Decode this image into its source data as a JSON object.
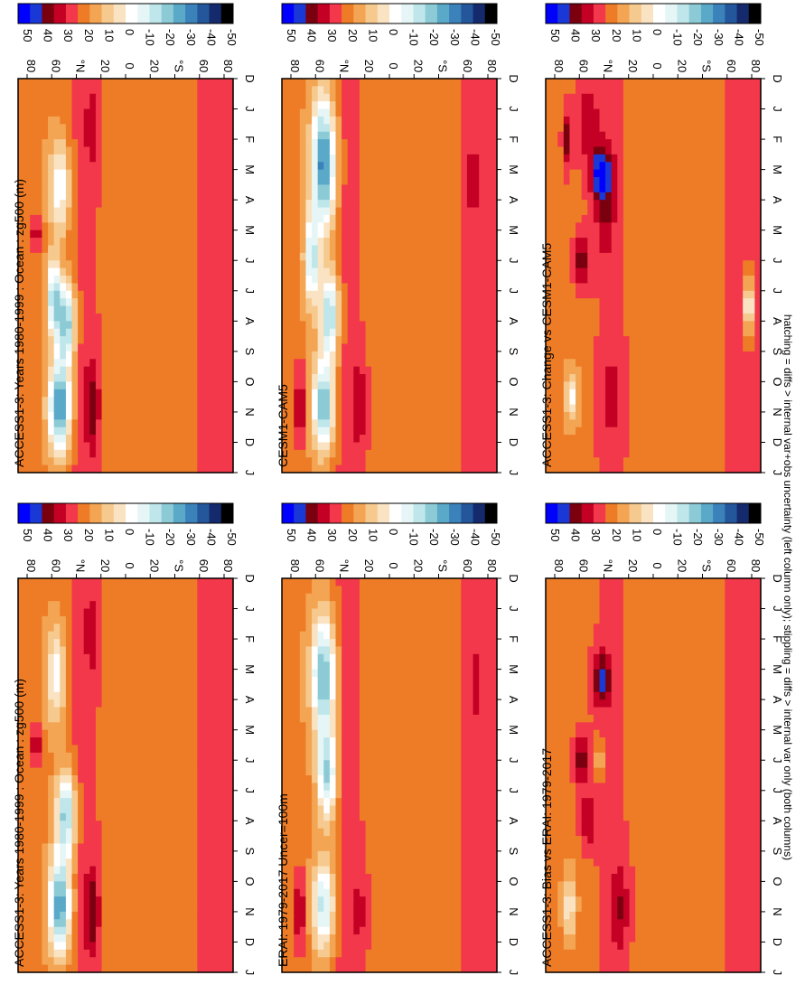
{
  "figure": {
    "footnote": "hatching = diffs > internal var+obs uncertainty (left column only); stippling = diffs > internal var only (both columns)"
  },
  "colorscale": {
    "levels": [
      "50",
      "40",
      "30",
      "20",
      "10",
      "0",
      "-10",
      "-20",
      "-30",
      "-40",
      "-50"
    ],
    "colors": [
      "#0000ff",
      "#1a38d6",
      "#7a0010",
      "#c40024",
      "#f2384a",
      "#ee7c26",
      "#f3a553",
      "#f6c98e",
      "#fae3c2",
      "#ffffff",
      "#e6f6f6",
      "#bfe6ea",
      "#8ccbd6",
      "#5aa9c9",
      "#3b82ba",
      "#24569c",
      "#152a6c",
      "#000000"
    ]
  },
  "chart_data": [
    {
      "type": "heatmap",
      "id": "panel-1",
      "title": "ACCESS1-3: Years 1980-1999 : Ocean : zg500 (m)",
      "x": [
        "D",
        "J",
        "F",
        "M",
        "A",
        "M",
        "J",
        "J",
        "A",
        "S",
        "O",
        "N",
        "D",
        "J"
      ],
      "ylabels": [
        "80",
        "60",
        "°N",
        "20",
        "0",
        "20",
        "°S",
        "60",
        "80"
      ],
      "ylim": [
        -90,
        90
      ],
      "units": "m",
      "features": [
        {
          "lat": 50,
          "mon": 8,
          "wlat": 8,
          "wmon": 1.3,
          "v": -38
        },
        {
          "lat": 55,
          "mon": 10.8,
          "wlat": 9,
          "wmon": 1.5,
          "v": -45
        },
        {
          "lat": 55,
          "mon": 3.6,
          "wlat": 9,
          "wmon": 1.6,
          "v": -22
        },
        {
          "lat": 60,
          "mon": 7.2,
          "wlat": 5,
          "wmon": 1.2,
          "v": -32
        },
        {
          "lat": 28,
          "mon": 10.8,
          "wlat": 6,
          "wmon": 1.6,
          "v": 26
        },
        {
          "lat": 28,
          "mon": 1.6,
          "wlat": 6,
          "wmon": 1.4,
          "v": 18
        },
        {
          "lat": 75,
          "mon": 5.1,
          "wlat": 4,
          "wmon": 0.6,
          "v": 22
        },
        {
          "lat": -75,
          "mon": 7.5,
          "wlat": 3,
          "wmon": 5,
          "v": 12
        }
      ]
    },
    {
      "type": "heatmap",
      "id": "panel-2",
      "title": "ACCESS1-3: Years 1980-1999 : Ocean : zg500 (m)",
      "x": [
        "D",
        "J",
        "F",
        "M",
        "A",
        "M",
        "J",
        "J",
        "A",
        "S",
        "O",
        "N",
        "D",
        "J"
      ],
      "ylabels": [
        "80",
        "60",
        "°N",
        "20",
        "0",
        "20",
        "°S",
        "60",
        "80"
      ],
      "ylim": [
        -90,
        90
      ],
      "units": "m",
      "features": [
        {
          "lat": 50,
          "mon": 7.8,
          "wlat": 8,
          "wmon": 1.4,
          "v": -36
        },
        {
          "lat": 55,
          "mon": 10.8,
          "wlat": 9,
          "wmon": 1.6,
          "v": -42
        },
        {
          "lat": 58,
          "mon": 3.2,
          "wlat": 8,
          "wmon": 1.6,
          "v": -20
        },
        {
          "lat": 28,
          "mon": 11,
          "wlat": 6,
          "wmon": 1.5,
          "v": 28
        },
        {
          "lat": 28,
          "mon": 1.8,
          "wlat": 6,
          "wmon": 1.4,
          "v": 18
        },
        {
          "lat": 75,
          "mon": 5.5,
          "wlat": 4,
          "wmon": 0.6,
          "v": 22
        },
        {
          "lat": -75,
          "mon": 7,
          "wlat": 3,
          "wmon": 5,
          "v": 12
        }
      ]
    },
    {
      "type": "heatmap",
      "id": "panel-3",
      "title": "CESM1-CAM5",
      "x": [
        "D",
        "J",
        "F",
        "M",
        "A",
        "M",
        "J",
        "J",
        "A",
        "S",
        "O",
        "N",
        "D",
        "J"
      ],
      "ylabels": [
        "80",
        "60",
        "°N",
        "20",
        "0",
        "20",
        "°S",
        "60",
        "80"
      ],
      "ylim": [
        -90,
        90
      ],
      "units": "m",
      "features": [
        {
          "lat": 55,
          "mon": 2.8,
          "wlat": 10,
          "wmon": 2.2,
          "v": -45
        },
        {
          "lat": 50,
          "mon": 7.8,
          "wlat": 8,
          "wmon": 1.4,
          "v": -34
        },
        {
          "lat": 55,
          "mon": 10.8,
          "wlat": 9,
          "wmon": 1.5,
          "v": -38
        },
        {
          "lat": 65,
          "mon": 6,
          "wlat": 6,
          "wmon": 1.5,
          "v": -28
        },
        {
          "lat": 25,
          "mon": 10.8,
          "wlat": 6,
          "wmon": 1.4,
          "v": 22
        },
        {
          "lat": 75,
          "mon": 10.8,
          "wlat": 5,
          "wmon": 1.2,
          "v": 24
        },
        {
          "lat": -70,
          "mon": 3.3,
          "wlat": 4,
          "wmon": 1.2,
          "v": 20
        }
      ]
    },
    {
      "type": "heatmap",
      "id": "panel-4",
      "title": "ERAI: 1979-2017 Uncer=100m",
      "x": [
        "D",
        "J",
        "F",
        "M",
        "A",
        "M",
        "J",
        "J",
        "A",
        "S",
        "O",
        "N",
        "D",
        "J"
      ],
      "ylabels": [
        "80",
        "60",
        "°N",
        "20",
        "0",
        "20",
        "°S",
        "60",
        "80"
      ],
      "ylim": [
        -90,
        90
      ],
      "units": "m",
      "features": [
        {
          "lat": 55,
          "mon": 3.2,
          "wlat": 10,
          "wmon": 2,
          "v": -38
        },
        {
          "lat": 52,
          "mon": 6.5,
          "wlat": 8,
          "wmon": 1.5,
          "v": -32
        },
        {
          "lat": 55,
          "mon": 10.8,
          "wlat": 9,
          "wmon": 1.5,
          "v": -30
        },
        {
          "lat": 75,
          "mon": 11,
          "wlat": 5,
          "wmon": 1.2,
          "v": 24
        },
        {
          "lat": 25,
          "mon": 11,
          "wlat": 6,
          "wmon": 1.5,
          "v": 14
        },
        {
          "lat": -72,
          "mon": 3.5,
          "wlat": 4,
          "wmon": 1.2,
          "v": 15
        }
      ]
    },
    {
      "type": "heatmap",
      "id": "panel-5",
      "title": "ACCESS1-3: Change vs CESM1-CAM5",
      "x": [
        "D",
        "J",
        "F",
        "M",
        "A",
        "M",
        "J",
        "J",
        "A",
        "S",
        "O",
        "N",
        "D",
        "J"
      ],
      "ylabels": [
        "80",
        "60",
        "°N",
        "20",
        "0",
        "20",
        "°S",
        "60",
        "80"
      ],
      "ylim": [
        -90,
        90
      ],
      "units": "m",
      "features": [
        {
          "lat": 43,
          "mon": 3.2,
          "wlat": 9,
          "wmon": 0.9,
          "v": 48
        },
        {
          "lat": 55,
          "mon": 1.5,
          "wlat": 10,
          "wmon": 1.3,
          "v": 22
        },
        {
          "lat": 60,
          "mon": 6,
          "wlat": 7,
          "wmon": 0.9,
          "v": 30
        },
        {
          "lat": 40,
          "mon": 4.8,
          "wlat": 8,
          "wmon": 1.2,
          "v": 18
        },
        {
          "lat": 72,
          "mon": 2,
          "wlat": 4,
          "wmon": 1,
          "v": 28
        },
        {
          "lat": 35,
          "mon": 10.5,
          "wlat": 8,
          "wmon": 1.6,
          "v": 14
        },
        {
          "lat": 68,
          "mon": 10.5,
          "wlat": 5,
          "wmon": 0.8,
          "v": -18
        },
        {
          "lat": -80,
          "mon": 7.5,
          "wlat": 3,
          "wmon": 1,
          "v": -35
        }
      ]
    },
    {
      "type": "heatmap",
      "id": "panel-6",
      "title": "ACCESS1-3: Bias vs ERAI: 1979-2017",
      "x": [
        "D",
        "J",
        "F",
        "M",
        "A",
        "M",
        "J",
        "J",
        "A",
        "S",
        "O",
        "N",
        "D",
        "J"
      ],
      "ylabels": [
        "80",
        "60",
        "°N",
        "20",
        "0",
        "20",
        "°S",
        "60",
        "80"
      ],
      "ylim": [
        -90,
        90
      ],
      "units": "m",
      "features": [
        {
          "lat": 43,
          "mon": 3.3,
          "wlat": 8,
          "wmon": 0.9,
          "v": 34
        },
        {
          "lat": 60,
          "mon": 6,
          "wlat": 7,
          "wmon": 0.8,
          "v": 30
        },
        {
          "lat": 55,
          "mon": 8,
          "wlat": 6,
          "wmon": 0.8,
          "v": 26
        },
        {
          "lat": 28,
          "mon": 10.8,
          "wlat": 8,
          "wmon": 1.5,
          "v": 20
        },
        {
          "lat": 70,
          "mon": 10.8,
          "wlat": 5,
          "wmon": 1,
          "v": -16
        },
        {
          "lat": 45,
          "mon": 6,
          "wlat": 4,
          "wmon": 0.6,
          "v": -10
        }
      ]
    }
  ]
}
